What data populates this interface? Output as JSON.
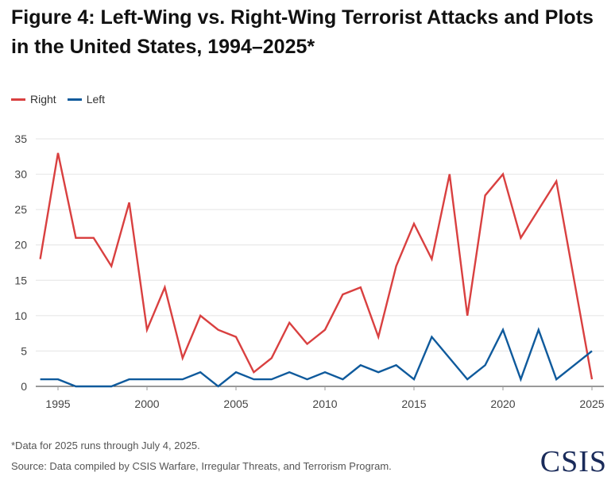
{
  "chart_data": {
    "type": "line",
    "title": "Figure 4: Left-Wing vs. Right-Wing Terrorist Attacks and Plots in the United States, 1994–2025*",
    "xlabel": "",
    "ylabel": "",
    "x": [
      1994,
      1995,
      1996,
      1997,
      1998,
      1999,
      2000,
      2001,
      2002,
      2003,
      2004,
      2005,
      2006,
      2007,
      2008,
      2009,
      2010,
      2011,
      2012,
      2013,
      2014,
      2015,
      2016,
      2017,
      2018,
      2019,
      2020,
      2021,
      2022,
      2023,
      2024,
      2025
    ],
    "series": [
      {
        "name": "Right",
        "color": "#d94040",
        "values": [
          18,
          33,
          21,
          21,
          17,
          26,
          8,
          14,
          4,
          10,
          8,
          7,
          2,
          4,
          9,
          6,
          8,
          13,
          14,
          7,
          17,
          23,
          18,
          30,
          10,
          27,
          30,
          21,
          25,
          29,
          15,
          1
        ]
      },
      {
        "name": "Left",
        "color": "#0f5a9c",
        "values": [
          1,
          1,
          0,
          0,
          0,
          1,
          1,
          1,
          1,
          2,
          0,
          2,
          1,
          1,
          2,
          1,
          2,
          1,
          3,
          2,
          3,
          1,
          7,
          4,
          1,
          3,
          8,
          1,
          8,
          1,
          3,
          5
        ]
      }
    ],
    "xticks": [
      "1995",
      "2000",
      "2005",
      "2010",
      "2015",
      "2020",
      "2025"
    ],
    "yticks": [
      "0",
      "5",
      "10",
      "15",
      "20",
      "25",
      "30",
      "35"
    ],
    "xlim": [
      1994,
      2025
    ],
    "ylim": [
      0,
      35
    ],
    "grid": true,
    "legend": "top-left"
  },
  "note": "*Data for 2025 runs through July 4, 2025.",
  "source": "Source: Data compiled by CSIS Warfare, Irregular Threats, and Terrorism Program.",
  "logo": "CSIS"
}
